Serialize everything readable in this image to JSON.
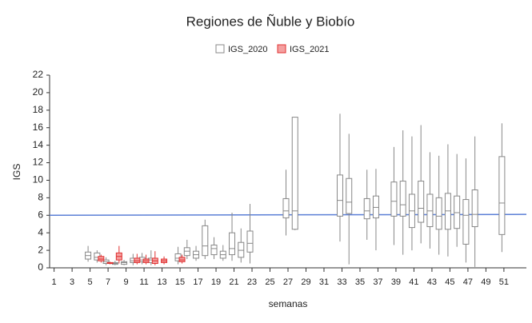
{
  "chart_data": {
    "type": "box",
    "title": "Regiones de Ñuble y Biobío",
    "x_label": "semanas",
    "y_label": "IGS",
    "xlim": [
      0.5,
      53.5
    ],
    "xticks": [
      1,
      3,
      5,
      7,
      9,
      11,
      13,
      15,
      17,
      19,
      21,
      23,
      25,
      27,
      29,
      31,
      33,
      35,
      37,
      39,
      41,
      43,
      45,
      47,
      49,
      51
    ],
    "ylim": [
      0,
      22
    ],
    "yticks": [
      0,
      2,
      4,
      6,
      8,
      10,
      12,
      14,
      16,
      18,
      20,
      22
    ],
    "grid": false,
    "hline": {
      "color": "#5b7fd6",
      "values": [
        6,
        6.1
      ]
    },
    "series": [
      {
        "name": "IGS_2020",
        "color": "#888888",
        "fill": "#ffffff",
        "x": [
          5,
          6,
          7,
          8,
          9,
          10,
          11,
          12,
          15,
          16,
          17,
          18,
          19,
          20,
          21,
          22,
          23,
          27,
          28,
          33,
          34,
          36,
          37,
          39,
          40,
          41,
          42,
          43,
          44,
          45,
          46,
          47,
          48,
          51
        ],
        "low": [
          0.7,
          0.6,
          0.3,
          0.3,
          0.3,
          0.3,
          0.4,
          0.3,
          0.4,
          1.0,
          0.8,
          1.0,
          1.0,
          0.8,
          0.8,
          0.6,
          0.5,
          3.7,
          4.3,
          3.0,
          0.4,
          3.2,
          2.0,
          2.6,
          1.5,
          2.0,
          2.8,
          2.2,
          1.5,
          1.3,
          2.4,
          0.6,
          0.1,
          1.8
        ],
        "q1": [
          1.0,
          0.9,
          0.5,
          0.4,
          0.4,
          0.6,
          0.7,
          0.6,
          0.8,
          1.4,
          1.1,
          1.4,
          1.5,
          1.1,
          1.5,
          1.2,
          1.8,
          5.7,
          4.4,
          5.9,
          6.2,
          5.6,
          5.7,
          5.9,
          5.9,
          4.6,
          5.2,
          4.7,
          4.4,
          4.4,
          4.5,
          2.7,
          4.7,
          3.8
        ],
        "median": [
          1.4,
          1.2,
          0.7,
          0.5,
          0.6,
          0.8,
          0.9,
          0.9,
          1.1,
          1.9,
          1.5,
          2.5,
          2.2,
          1.5,
          2.2,
          2.0,
          2.8,
          6.5,
          6.5,
          7.7,
          7.5,
          6.5,
          6.9,
          7.6,
          7.2,
          6.5,
          6.8,
          6.5,
          5.9,
          6.5,
          6.3,
          6.0,
          6.1,
          7.4
        ],
        "q3": [
          1.8,
          1.7,
          0.9,
          0.6,
          0.7,
          1.1,
          1.2,
          1.1,
          1.6,
          2.3,
          1.9,
          4.8,
          2.6,
          1.9,
          4.0,
          2.9,
          4.2,
          7.9,
          17.2,
          10.6,
          10.2,
          7.9,
          8.2,
          9.8,
          9.9,
          8.4,
          9.9,
          8.4,
          8.0,
          8.5,
          8.2,
          7.8,
          8.9,
          12.7
        ],
        "high": [
          2.5,
          2.0,
          1.2,
          0.8,
          0.9,
          1.6,
          1.7,
          2.0,
          2.4,
          3.2,
          2.5,
          5.5,
          3.5,
          2.6,
          6.3,
          4.5,
          7.3,
          11.2,
          17.2,
          17.6,
          15.3,
          11.2,
          11.3,
          13.8,
          15.7,
          15.0,
          16.3,
          13.2,
          12.8,
          14.1,
          13.0,
          12.5,
          15.0,
          16.5
        ]
      },
      {
        "name": "IGS_2021",
        "color": "#e03030",
        "fill": "#f4a0a0",
        "x": [
          6,
          7,
          8,
          10,
          11,
          12,
          13,
          15
        ],
        "low": [
          0.6,
          0.4,
          0.5,
          0.4,
          0.4,
          0.3,
          0.4,
          0.5
        ],
        "q1": [
          0.8,
          0.5,
          0.9,
          0.6,
          0.6,
          0.5,
          0.6,
          0.7
        ],
        "median": [
          1.0,
          0.5,
          1.3,
          0.8,
          0.8,
          0.8,
          0.8,
          0.9
        ],
        "q3": [
          1.3,
          0.6,
          1.7,
          1.1,
          1.0,
          1.1,
          1.0,
          1.2
        ],
        "high": [
          1.5,
          0.7,
          2.5,
          1.6,
          1.5,
          1.9,
          1.3,
          1.5
        ]
      }
    ]
  }
}
